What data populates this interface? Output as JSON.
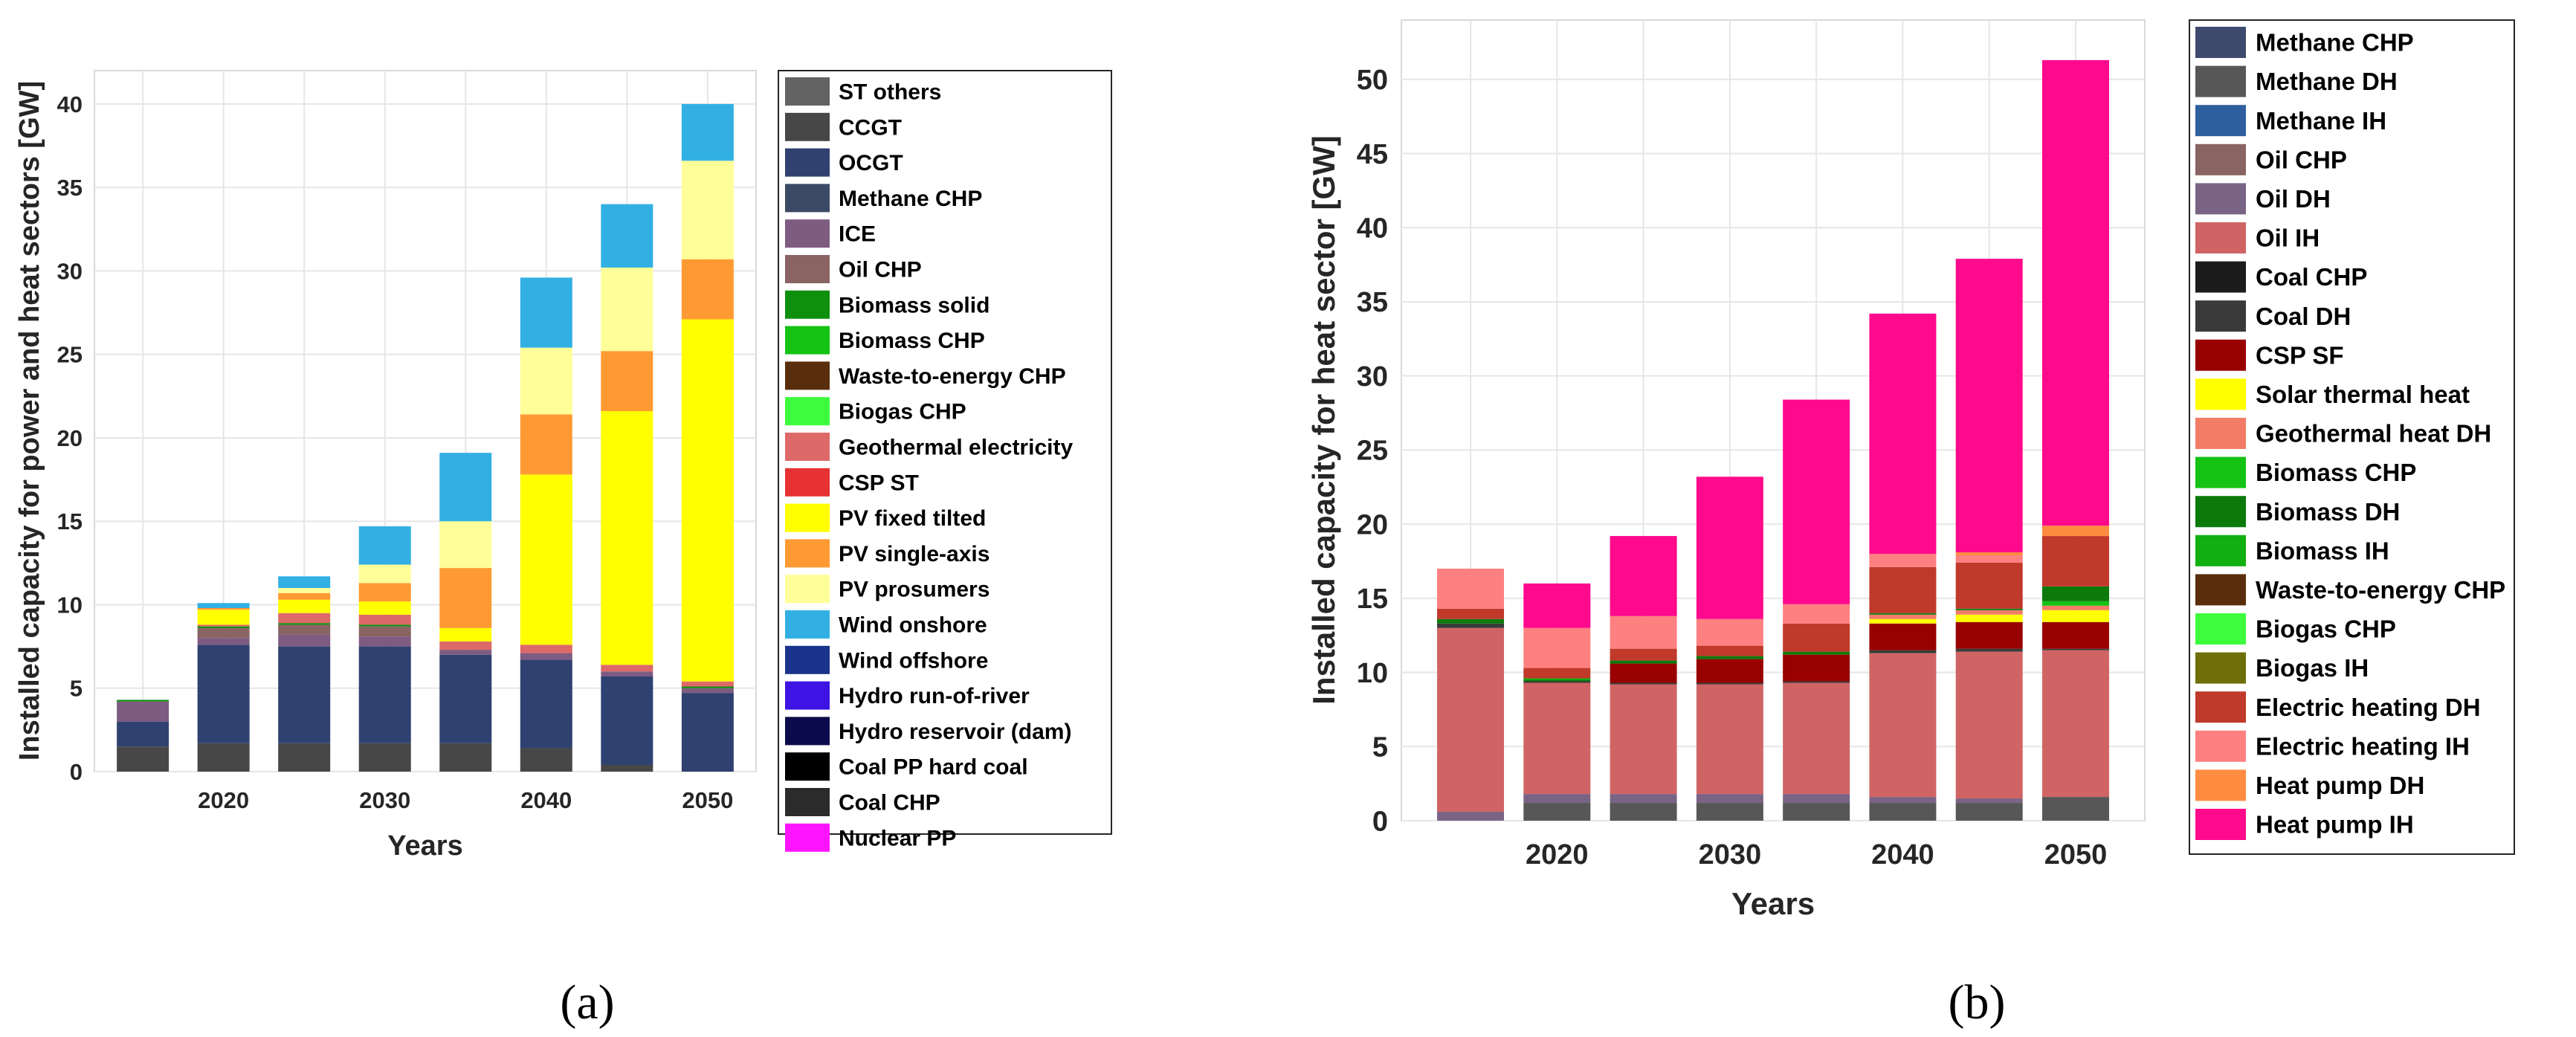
{
  "chart_data": [
    {
      "id": "a",
      "type": "bar",
      "stacked": true,
      "caption": "(a)",
      "xlabel": "Years",
      "ylabel": "Installed capacity for power and heat sectors [GW]",
      "ylim": [
        0,
        42
      ],
      "yticks": [
        0,
        5,
        10,
        15,
        20,
        25,
        30,
        35,
        40
      ],
      "xticks": [
        2015,
        2020,
        2025,
        2030,
        2035,
        2040,
        2045,
        2050
      ],
      "xticklabels": [
        "",
        "2020",
        "",
        "2030",
        "",
        "2040",
        "",
        "2050"
      ],
      "grid": true,
      "legend_position": "outside-right",
      "series": [
        {
          "name": "ST others",
          "color": "#636363",
          "values": [
            0,
            0,
            0,
            0,
            0,
            0,
            0,
            0
          ]
        },
        {
          "name": "CCGT",
          "color": "#474747",
          "values": [
            1.5,
            1.7,
            1.7,
            1.7,
            1.7,
            1.4,
            0.4,
            0
          ]
        },
        {
          "name": "OCGT",
          "color": "#2f4170",
          "values": [
            1.5,
            5.9,
            5.8,
            5.8,
            5.3,
            5.3,
            5.3,
            4.7
          ]
        },
        {
          "name": "Methane CHP",
          "color": "#3c4a66",
          "values": [
            0,
            0,
            0,
            0,
            0,
            0,
            0,
            0
          ]
        },
        {
          "name": "ICE",
          "color": "#7e5c82",
          "values": [
            1.2,
            0.4,
            0.7,
            0.6,
            0.3,
            0.4,
            0.3,
            0.3
          ]
        },
        {
          "name": "Oil CHP",
          "color": "#8a6363",
          "values": [
            0,
            0.6,
            0.6,
            0.6,
            0,
            0,
            0,
            0
          ]
        },
        {
          "name": "Biomass solid",
          "color": "#0e8f0e",
          "values": [
            0.1,
            0.1,
            0.1,
            0.1,
            0,
            0,
            0,
            0.1
          ]
        },
        {
          "name": "Biomass CHP",
          "color": "#14c314",
          "values": [
            0,
            0,
            0,
            0,
            0,
            0,
            0,
            0
          ]
        },
        {
          "name": "Waste-to-energy CHP",
          "color": "#5a2e0c",
          "values": [
            0,
            0,
            0,
            0,
            0,
            0,
            0,
            0
          ]
        },
        {
          "name": "Biogas CHP",
          "color": "#3dfc3d",
          "values": [
            0,
            0,
            0,
            0,
            0,
            0,
            0,
            0
          ]
        },
        {
          "name": "Geothermal electricity",
          "color": "#de6969",
          "values": [
            0,
            0.1,
            0.6,
            0.6,
            0.5,
            0.5,
            0.4,
            0.3
          ]
        },
        {
          "name": "CSP ST",
          "color": "#e63232",
          "values": [
            0,
            0,
            0,
            0,
            0,
            0,
            0,
            0
          ]
        },
        {
          "name": "PV fixed tilted",
          "color": "#ffff00",
          "values": [
            0,
            0.9,
            0.8,
            0.8,
            0.8,
            10.2,
            15.2,
            21.7
          ]
        },
        {
          "name": "PV single-axis",
          "color": "#ff9a33",
          "values": [
            0,
            0.1,
            0.4,
            1.1,
            3.6,
            3.6,
            3.6,
            3.6
          ]
        },
        {
          "name": "PV prosumers",
          "color": "#ffff99",
          "values": [
            0,
            0,
            0.3,
            1.1,
            2.8,
            4,
            5,
            5.9
          ]
        },
        {
          "name": "Wind onshore",
          "color": "#33b0e3",
          "values": [
            0,
            0.3,
            0.7,
            2.3,
            4.1,
            4.2,
            3.8,
            3.4
          ]
        },
        {
          "name": "Wind offshore",
          "color": "#1a338c",
          "values": [
            0,
            0,
            0,
            0,
            0,
            0,
            0,
            0
          ]
        },
        {
          "name": "Hydro run-of-river",
          "color": "#3d14e3",
          "values": [
            0,
            0,
            0,
            0,
            0,
            0,
            0,
            0
          ]
        },
        {
          "name": "Hydro reservoir (dam)",
          "color": "#0a0a4d",
          "values": [
            0,
            0,
            0,
            0,
            0,
            0,
            0,
            0
          ]
        },
        {
          "name": "Coal PP hard coal",
          "color": "#000000",
          "values": [
            0,
            0,
            0,
            0,
            0,
            0,
            0,
            0
          ]
        },
        {
          "name": "Coal CHP",
          "color": "#2b2b2b",
          "values": [
            0,
            0,
            0,
            0,
            0,
            0,
            0,
            0
          ]
        },
        {
          "name": "Nuclear PP",
          "color": "#ff14ff",
          "values": [
            0,
            0,
            0,
            0,
            0,
            0,
            0,
            0
          ]
        }
      ]
    },
    {
      "id": "b",
      "type": "bar",
      "stacked": true,
      "caption": "(b)",
      "xlabel": "Years",
      "ylabel": "Installed capacity for heat sector [GW]",
      "ylim": [
        0,
        54
      ],
      "yticks": [
        0,
        5,
        10,
        15,
        20,
        25,
        30,
        35,
        40,
        45,
        50
      ],
      "xticks": [
        2015,
        2020,
        2025,
        2030,
        2035,
        2040,
        2045,
        2050
      ],
      "xticklabels": [
        "",
        "2020",
        "",
        "2030",
        "",
        "2040",
        "",
        "2050"
      ],
      "grid": true,
      "legend_position": "outside-right",
      "series": [
        {
          "name": "Methane CHP",
          "color": "#3e4a6e",
          "values": [
            0,
            0,
            0,
            0,
            0,
            0,
            0,
            0
          ]
        },
        {
          "name": "Methane DH",
          "color": "#575757",
          "values": [
            0,
            1.2,
            1.2,
            1.2,
            1.2,
            1.2,
            1.2,
            1.6
          ]
        },
        {
          "name": "Methane IH",
          "color": "#2f5f9e",
          "values": [
            0,
            0,
            0,
            0,
            0,
            0,
            0,
            0
          ]
        },
        {
          "name": "Oil CHP",
          "color": "#8a6363",
          "values": [
            0,
            0,
            0,
            0,
            0,
            0,
            0,
            0
          ]
        },
        {
          "name": "Oil DH",
          "color": "#7a6485",
          "values": [
            0.6,
            0.6,
            0.6,
            0.6,
            0.6,
            0.4,
            0.3,
            0
          ]
        },
        {
          "name": "Oil IH",
          "color": "#d06464",
          "values": [
            12.4,
            7.5,
            7.4,
            7.4,
            7.5,
            9.7,
            9.9,
            9.9
          ]
        },
        {
          "name": "Coal CHP",
          "color": "#1c1c1c",
          "values": [
            0,
            0,
            0,
            0,
            0,
            0,
            0,
            0
          ]
        },
        {
          "name": "Coal DH",
          "color": "#3a3a3a",
          "values": [
            0.3,
            0.1,
            0.1,
            0.1,
            0.1,
            0.2,
            0.2,
            0.1
          ]
        },
        {
          "name": "CSP SF",
          "color": "#990000",
          "values": [
            0,
            0,
            1.3,
            1.6,
            1.8,
            1.8,
            1.8,
            1.8
          ]
        },
        {
          "name": "Solar thermal heat",
          "color": "#ffff00",
          "values": [
            0,
            0,
            0,
            0,
            0,
            0.3,
            0.5,
            0.8
          ]
        },
        {
          "name": "Geothermal heat DH",
          "color": "#f27c66",
          "values": [
            0,
            0,
            0,
            0,
            0,
            0.3,
            0.3,
            0.3
          ]
        },
        {
          "name": "Biomass CHP",
          "color": "#14c314",
          "values": [
            0,
            0,
            0,
            0,
            0,
            0,
            0,
            0.3
          ]
        },
        {
          "name": "Biomass DH",
          "color": "#0b7a0b",
          "values": [
            0.3,
            0.1,
            0.2,
            0.2,
            0.2,
            0.1,
            0.1,
            1.0
          ]
        },
        {
          "name": "Biomass IH",
          "color": "#10b010",
          "values": [
            0,
            0.1,
            0,
            0,
            0,
            0,
            0,
            0
          ]
        },
        {
          "name": "Waste-to-energy CHP",
          "color": "#5a2e0c",
          "values": [
            0,
            0,
            0,
            0,
            0,
            0,
            0,
            0
          ]
        },
        {
          "name": "Biogas CHP",
          "color": "#3dfc3d",
          "values": [
            0,
            0,
            0,
            0,
            0,
            0,
            0,
            0
          ]
        },
        {
          "name": "Biogas IH",
          "color": "#6e6e0a",
          "values": [
            0,
            0,
            0,
            0,
            0,
            0,
            0,
            0
          ]
        },
        {
          "name": "Electric heating DH",
          "color": "#c0392b",
          "values": [
            0.7,
            0.7,
            0.8,
            0.7,
            1.9,
            3.1,
            3.1,
            3.4
          ]
        },
        {
          "name": "Electric heating IH",
          "color": "#ff8080",
          "values": [
            2.7,
            2.7,
            2.2,
            1.8,
            1.3,
            0.9,
            0.5,
            0
          ]
        },
        {
          "name": "Heat pump DH",
          "color": "#ff8c40",
          "values": [
            0,
            0,
            0,
            0,
            0,
            0,
            0.2,
            0.7
          ]
        },
        {
          "name": "Heat pump IH",
          "color": "#ff0a8c",
          "values": [
            0,
            3,
            5.4,
            9.6,
            13.8,
            16.2,
            19.8,
            31.4
          ]
        }
      ]
    }
  ]
}
